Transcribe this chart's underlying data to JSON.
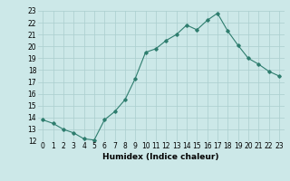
{
  "x": [
    0,
    1,
    2,
    3,
    4,
    5,
    6,
    7,
    8,
    9,
    10,
    11,
    12,
    13,
    14,
    15,
    16,
    17,
    18,
    19,
    20,
    21,
    22,
    23
  ],
  "y": [
    13.8,
    13.5,
    13.0,
    12.7,
    12.2,
    12.1,
    13.8,
    14.5,
    15.5,
    17.3,
    19.5,
    19.8,
    20.5,
    21.0,
    21.8,
    21.4,
    22.2,
    22.8,
    21.3,
    20.1,
    19.0,
    18.5,
    17.9,
    17.5
  ],
  "xlabel": "Humidex (Indice chaleur)",
  "xlim": [
    -0.5,
    23.5
  ],
  "ylim": [
    12,
    23
  ],
  "yticks": [
    12,
    13,
    14,
    15,
    16,
    17,
    18,
    19,
    20,
    21,
    22,
    23
  ],
  "xticks": [
    0,
    1,
    2,
    3,
    4,
    5,
    6,
    7,
    8,
    9,
    10,
    11,
    12,
    13,
    14,
    15,
    16,
    17,
    18,
    19,
    20,
    21,
    22,
    23
  ],
  "line_color": "#2e7d6e",
  "marker": "D",
  "marker_size": 1.8,
  "bg_color": "#cce8e8",
  "grid_color": "#aacece",
  "label_fontsize": 6.5,
  "tick_fontsize": 5.5
}
